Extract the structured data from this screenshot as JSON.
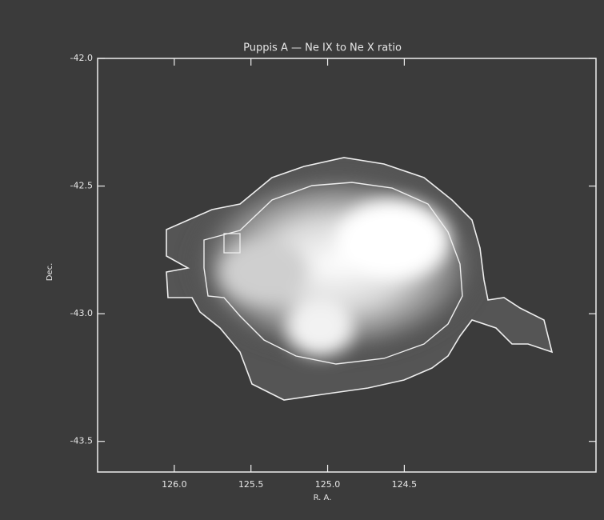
{
  "chart_data": {
    "type": "image",
    "title": "Puppis A — Ne IX to Ne X ratio",
    "xlabel": "R. A.",
    "ylabel": "Dec.",
    "xlim": [
      126.5,
      123.25
    ],
    "ylim": [
      -43.62,
      -42.0
    ],
    "xticks": [
      {
        "value": 126,
        "label": "126.0"
      },
      {
        "value": 125.5,
        "label": "125.5"
      },
      {
        "value": 125,
        "label": "125.0"
      },
      {
        "value": 124.5,
        "label": "124.5"
      }
    ],
    "yticks": [
      {
        "value": -42,
        "label": "-42.0"
      },
      {
        "value": -42.5,
        "label": "-42.5"
      },
      {
        "value": -43,
        "label": "-43.0"
      },
      {
        "value": -43.5,
        "label": "-43.5"
      }
    ]
  }
}
